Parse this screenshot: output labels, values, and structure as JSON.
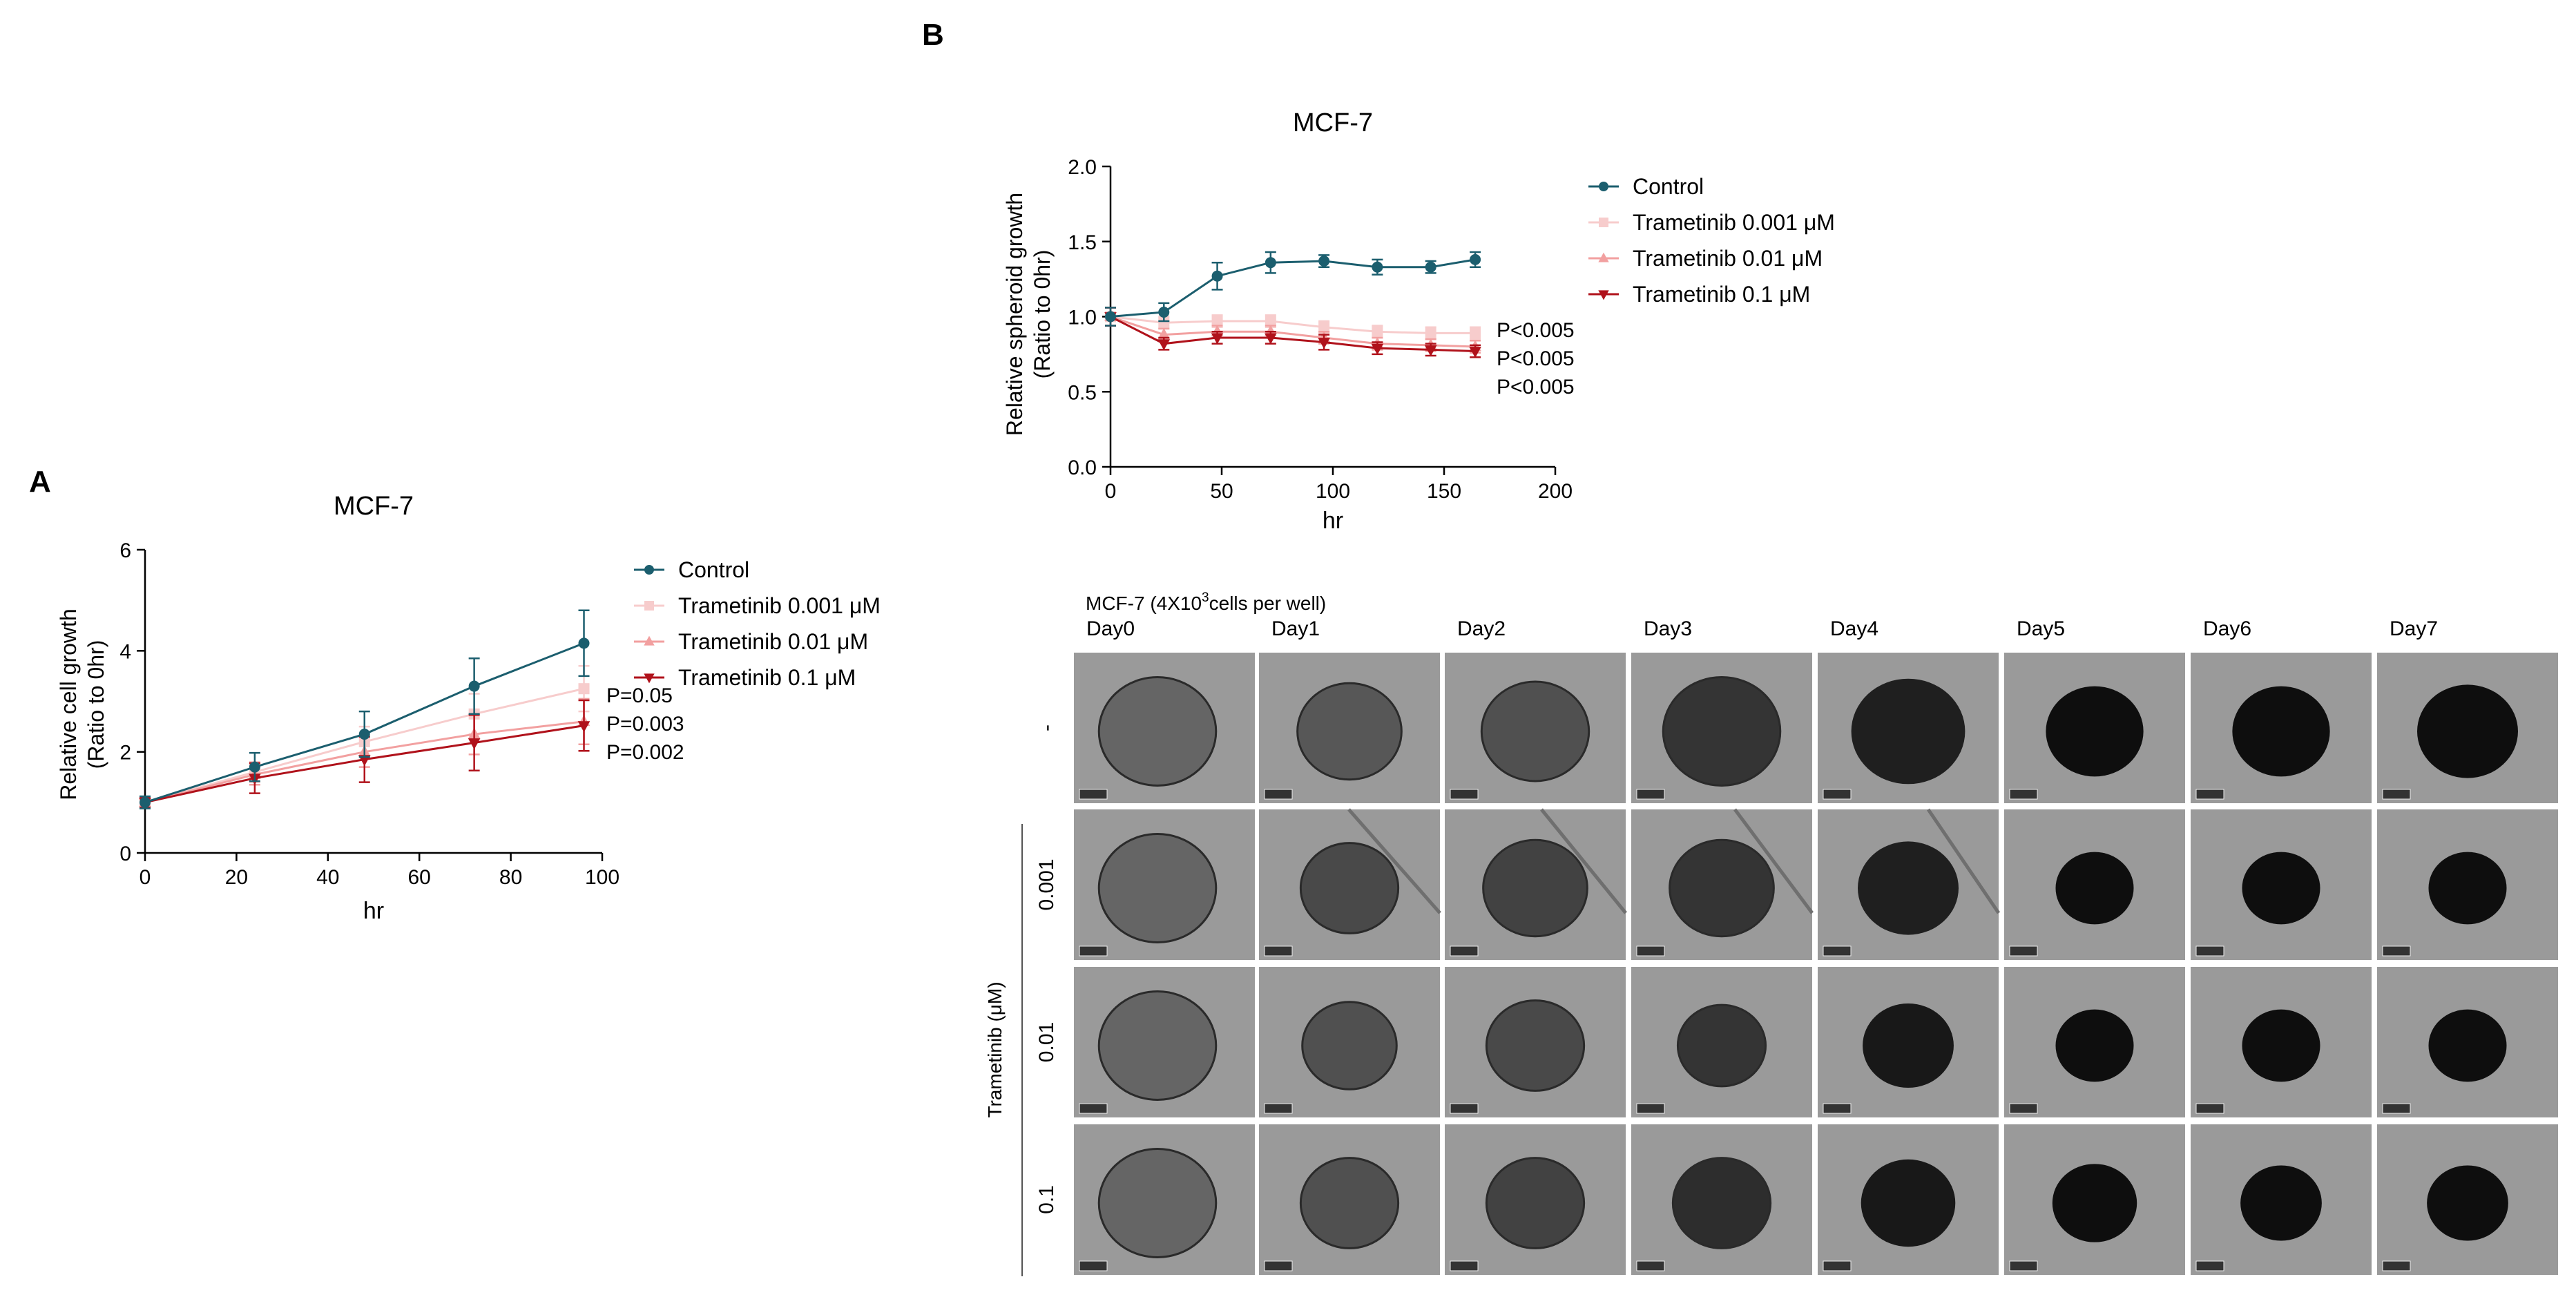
{
  "panels": {
    "a_label": "A",
    "b_label": "B"
  },
  "chart_data": [
    {
      "id": "A",
      "type": "line",
      "title": "MCF-7",
      "xlabel": "hr",
      "ylabel_line1": "Relative cell growth",
      "ylabel_line2": "(Ratio to 0hr)",
      "xlim": [
        0,
        100
      ],
      "ylim": [
        0,
        6
      ],
      "xticks": [
        0,
        20,
        40,
        60,
        80,
        100
      ],
      "yticks": [
        0,
        2,
        4,
        6
      ],
      "x": [
        0,
        24,
        48,
        72,
        96
      ],
      "series": [
        {
          "name": "Control",
          "color": "#1b5e6e",
          "marker": "circle",
          "values": [
            1.0,
            1.7,
            2.35,
            3.3,
            4.15
          ],
          "errors": [
            0.12,
            0.28,
            0.45,
            0.55,
            0.65
          ]
        },
        {
          "name": "Trametinib 0.001 μM",
          "color": "#f7cccc",
          "marker": "square",
          "values": [
            1.0,
            1.6,
            2.2,
            2.75,
            3.25
          ],
          "errors": [
            0.1,
            0.2,
            0.3,
            0.4,
            0.45
          ]
        },
        {
          "name": "Trametinib 0.01 μM",
          "color": "#f2a0a0",
          "marker": "triangle-up",
          "values": [
            1.0,
            1.55,
            2.0,
            2.35,
            2.6
          ],
          "errors": [
            0.1,
            0.2,
            0.3,
            0.4,
            0.45
          ]
        },
        {
          "name": "Trametinib 0.1 μM",
          "color": "#b0121b",
          "marker": "triangle-down",
          "values": [
            1.0,
            1.48,
            1.85,
            2.18,
            2.52
          ],
          "errors": [
            0.1,
            0.3,
            0.45,
            0.55,
            0.5
          ]
        }
      ],
      "annotations": [
        "P=0.05",
        "P=0.003",
        "P=0.002"
      ]
    },
    {
      "id": "B",
      "type": "line",
      "title": "MCF-7",
      "xlabel": "hr",
      "ylabel_line1": "Relative spheroid growth",
      "ylabel_line2": "(Ratio to 0hr)",
      "xlim": [
        0,
        200
      ],
      "ylim": [
        0,
        2.0
      ],
      "xticks": [
        0,
        50,
        100,
        150,
        200
      ],
      "yticks": [
        "0.0",
        "0.5",
        "1.0",
        "1.5",
        "2.0"
      ],
      "x": [
        0,
        24,
        48,
        72,
        96,
        120,
        144,
        164
      ],
      "series": [
        {
          "name": "Control",
          "color": "#1b5e6e",
          "marker": "circle",
          "values": [
            1.0,
            1.03,
            1.27,
            1.36,
            1.37,
            1.33,
            1.33,
            1.38
          ],
          "errors": [
            0.06,
            0.06,
            0.09,
            0.07,
            0.04,
            0.05,
            0.04,
            0.05
          ]
        },
        {
          "name": "Trametinib 0.001 μM",
          "color": "#f7cccc",
          "marker": "square",
          "values": [
            1.0,
            0.96,
            0.97,
            0.97,
            0.93,
            0.9,
            0.89,
            0.89
          ],
          "errors": [
            0.06,
            0.04,
            0.04,
            0.04,
            0.04,
            0.04,
            0.04,
            0.04
          ]
        },
        {
          "name": "Trametinib 0.01 μM",
          "color": "#f2a0a0",
          "marker": "triangle-up",
          "values": [
            1.0,
            0.88,
            0.9,
            0.9,
            0.86,
            0.82,
            0.81,
            0.8
          ],
          "errors": [
            0.06,
            0.04,
            0.04,
            0.04,
            0.04,
            0.04,
            0.04,
            0.04
          ]
        },
        {
          "name": "Trametinib 0.1 μM",
          "color": "#b0121b",
          "marker": "triangle-down",
          "values": [
            1.0,
            0.82,
            0.86,
            0.86,
            0.83,
            0.79,
            0.78,
            0.77
          ],
          "errors": [
            0.06,
            0.04,
            0.04,
            0.04,
            0.05,
            0.04,
            0.04,
            0.04
          ]
        }
      ],
      "annotations": [
        "P<0.005",
        "P<0.005",
        "P<0.005"
      ]
    }
  ],
  "image_grid": {
    "header": "MCF-7 (4X10",
    "header_sup": "3",
    "header_tail": "cells per well)",
    "days": [
      "Day0",
      "Day1",
      "Day2",
      "Day3",
      "Day4",
      "Day5",
      "Day6",
      "Day7"
    ],
    "rows": [
      "-",
      "0.001",
      "0.01",
      "0.1"
    ],
    "group_label": "Trametinib (μM)",
    "spheroid_relative_size": [
      [
        0.36,
        0.32,
        0.33,
        0.36,
        0.35,
        0.3,
        0.3,
        0.31
      ],
      [
        0.36,
        0.3,
        0.32,
        0.32,
        0.31,
        0.24,
        0.24,
        0.24
      ],
      [
        0.36,
        0.29,
        0.3,
        0.27,
        0.28,
        0.24,
        0.24,
        0.24
      ],
      [
        0.36,
        0.3,
        0.3,
        0.3,
        0.29,
        0.26,
        0.25,
        0.25
      ]
    ],
    "spheroid_darkness": [
      [
        0.35,
        0.45,
        0.5,
        0.7,
        0.85,
        0.97,
        0.97,
        0.97
      ],
      [
        0.35,
        0.55,
        0.6,
        0.7,
        0.85,
        0.97,
        0.97,
        0.97
      ],
      [
        0.35,
        0.5,
        0.55,
        0.7,
        0.9,
        0.97,
        0.97,
        0.97
      ],
      [
        0.35,
        0.5,
        0.6,
        0.75,
        0.9,
        0.97,
        0.97,
        0.97
      ]
    ]
  }
}
